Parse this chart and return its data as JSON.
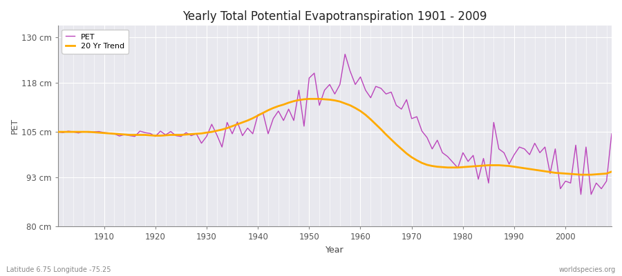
{
  "title": "Yearly Total Potential Evapotranspiration 1901 - 2009",
  "xlabel": "Year",
  "ylabel": "PET",
  "footnote_left": "Latitude 6.75 Longitude -75.25",
  "footnote_right": "worldspecies.org",
  "fig_bg_color": "#ffffff",
  "plot_bg_color": "#e8e8ee",
  "pet_color": "#bb44bb",
  "trend_color": "#ffaa00",
  "ylim": [
    80,
    133
  ],
  "yticks": [
    80,
    93,
    105,
    118,
    130
  ],
  "ytick_labels": [
    "80 cm",
    "93 cm",
    "105 cm",
    "118 cm",
    "130 cm"
  ],
  "years": [
    1901,
    1902,
    1903,
    1904,
    1905,
    1906,
    1907,
    1908,
    1909,
    1910,
    1911,
    1912,
    1913,
    1914,
    1915,
    1916,
    1917,
    1918,
    1919,
    1920,
    1921,
    1922,
    1923,
    1924,
    1925,
    1926,
    1927,
    1928,
    1929,
    1930,
    1931,
    1932,
    1933,
    1934,
    1935,
    1936,
    1937,
    1938,
    1939,
    1940,
    1941,
    1942,
    1943,
    1944,
    1945,
    1946,
    1947,
    1948,
    1949,
    1950,
    1951,
    1952,
    1953,
    1954,
    1955,
    1956,
    1957,
    1958,
    1959,
    1960,
    1961,
    1962,
    1963,
    1964,
    1965,
    1966,
    1967,
    1968,
    1969,
    1970,
    1971,
    1972,
    1973,
    1974,
    1975,
    1976,
    1977,
    1978,
    1979,
    1980,
    1981,
    1982,
    1983,
    1984,
    1985,
    1986,
    1987,
    1988,
    1989,
    1990,
    1991,
    1992,
    1993,
    1994,
    1995,
    1996,
    1997,
    1998,
    1999,
    2000,
    2001,
    2002,
    2003,
    2004,
    2005,
    2006,
    2007,
    2008,
    2009
  ],
  "pet_values": [
    105.0,
    104.8,
    105.2,
    105.0,
    104.7,
    105.1,
    104.9,
    105.0,
    105.1,
    104.8,
    104.7,
    104.5,
    103.9,
    104.3,
    104.0,
    103.8,
    105.2,
    104.8,
    104.6,
    103.8,
    105.2,
    104.2,
    105.1,
    104.0,
    103.8,
    104.8,
    104.0,
    104.5,
    102.0,
    103.8,
    107.0,
    104.2,
    101.0,
    107.5,
    104.5,
    107.6,
    104.0,
    106.0,
    104.5,
    109.5,
    110.0,
    104.5,
    108.5,
    110.5,
    108.0,
    111.0,
    108.0,
    116.0,
    106.5,
    119.2,
    120.5,
    112.0,
    116.0,
    117.5,
    115.0,
    117.5,
    125.5,
    121.0,
    117.5,
    119.5,
    116.0,
    114.0,
    117.0,
    116.5,
    115.0,
    115.5,
    112.0,
    111.0,
    113.5,
    108.5,
    109.0,
    105.2,
    103.5,
    100.5,
    102.8,
    99.5,
    98.5,
    97.0,
    95.5,
    99.5,
    97.2,
    98.8,
    92.5,
    98.0,
    91.5,
    107.5,
    100.5,
    99.5,
    96.5,
    99.0,
    101.0,
    100.5,
    99.0,
    102.0,
    99.5,
    101.0,
    94.0,
    100.5,
    90.0,
    92.0,
    91.5,
    101.5,
    88.5,
    101.0,
    88.5,
    91.5,
    90.0,
    92.0,
    104.5
  ],
  "trend_values": [
    105.0,
    105.0,
    105.0,
    105.0,
    105.0,
    105.0,
    105.0,
    104.9,
    104.8,
    104.7,
    104.6,
    104.5,
    104.4,
    104.3,
    104.2,
    104.2,
    104.2,
    104.2,
    104.1,
    104.0,
    104.0,
    104.1,
    104.2,
    104.2,
    104.2,
    104.3,
    104.4,
    104.5,
    104.6,
    104.8,
    105.0,
    105.3,
    105.6,
    106.0,
    106.5,
    107.0,
    107.5,
    108.0,
    108.6,
    109.3,
    110.0,
    110.7,
    111.3,
    111.8,
    112.2,
    112.7,
    113.1,
    113.4,
    113.6,
    113.7,
    113.7,
    113.7,
    113.6,
    113.5,
    113.3,
    113.0,
    112.5,
    112.0,
    111.3,
    110.5,
    109.5,
    108.3,
    107.0,
    105.7,
    104.3,
    103.0,
    101.7,
    100.5,
    99.3,
    98.3,
    97.5,
    96.8,
    96.3,
    96.0,
    95.8,
    95.7,
    95.6,
    95.6,
    95.6,
    95.7,
    95.8,
    95.9,
    96.0,
    96.1,
    96.2,
    96.2,
    96.2,
    96.1,
    96.0,
    95.8,
    95.6,
    95.4,
    95.2,
    95.0,
    94.8,
    94.6,
    94.4,
    94.2,
    94.1,
    94.0,
    93.9,
    93.8,
    93.7,
    93.7,
    93.7,
    93.8,
    93.9,
    94.0,
    94.5
  ]
}
